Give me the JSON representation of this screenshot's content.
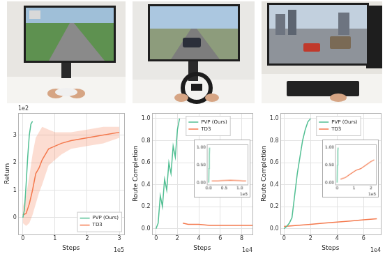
{
  "chart_data": [
    {
      "type": "line",
      "x_label": "Steps",
      "y_label": "Return",
      "x_scale_text": "1e5",
      "y_scale_text": "1e2",
      "xlim": [
        -0.15,
        3.15
      ],
      "ylim": [
        -0.6,
        3.8
      ],
      "xticks": [
        0,
        1,
        2,
        3
      ],
      "yticks": [
        0,
        1,
        2,
        3
      ],
      "grid": true,
      "legend": "lower right",
      "series": [
        {
          "name": "PVP (Ours)",
          "color": "#52bf93",
          "x": [
            0,
            0.05,
            0.1,
            0.15,
            0.2,
            0.25,
            0.3
          ],
          "values": [
            0,
            0.3,
            1.2,
            2.2,
            3.0,
            3.4,
            3.5
          ]
        },
        {
          "name": "TD3",
          "color": "#f4794d",
          "x": [
            0,
            0.1,
            0.2,
            0.3,
            0.4,
            0.5,
            0.6,
            0.8,
            1.0,
            1.2,
            1.5,
            2.0,
            2.5,
            3.0
          ],
          "values": [
            0.1,
            0.15,
            0.5,
            1.0,
            1.6,
            1.8,
            2.1,
            2.5,
            2.6,
            2.7,
            2.8,
            2.9,
            3.0,
            3.1
          ],
          "lower": [
            -0.2,
            -0.3,
            -0.2,
            0.1,
            0.5,
            0.9,
            1.2,
            1.9,
            2.1,
            2.3,
            2.5,
            2.6,
            2.7,
            2.9
          ],
          "upper": [
            0.4,
            0.8,
            1.5,
            2.3,
            2.9,
            3.1,
            3.3,
            3.2,
            3.1,
            3.1,
            3.1,
            3.2,
            3.3,
            3.3
          ]
        }
      ]
    },
    {
      "type": "line",
      "x_label": "Steps",
      "y_label": "Route Completion",
      "x_scale_text": "1e4",
      "xlim": [
        -0.4,
        9.0
      ],
      "ylim": [
        -0.05,
        1.05
      ],
      "xticks": [
        0,
        2,
        4,
        6,
        8
      ],
      "yticks": [
        {
          "value": 0,
          "label": "0.0"
        },
        0.2,
        0.4,
        0.6,
        0.8,
        {
          "value": 1,
          "label": "1.0"
        }
      ],
      "grid": true,
      "legend": "upper left",
      "series": [
        {
          "name": "PVP (Ours)",
          "color": "#52bf93",
          "x": [
            0,
            0.2,
            0.4,
            0.6,
            0.8,
            1.0,
            1.2,
            1.4,
            1.6,
            1.8,
            2.0,
            2.2
          ],
          "values": [
            0,
            0.05,
            0.3,
            0.2,
            0.45,
            0.35,
            0.6,
            0.5,
            0.75,
            0.65,
            0.9,
            1.0
          ]
        },
        {
          "name": "TD3",
          "color": "#f4794d",
          "x": [
            2.5,
            3,
            4,
            5,
            6,
            7,
            8,
            9
          ],
          "values": [
            0.05,
            0.04,
            0.04,
            0.03,
            0.03,
            0.03,
            0.03,
            0.03
          ]
        }
      ],
      "inset": {
        "type": "line",
        "x_scale_text": "1e5",
        "xlim": [
          -0.05,
          1.25
        ],
        "ylim": [
          -0.05,
          1.1
        ],
        "xticks": [
          {
            "value": 0,
            "label": "0.0"
          },
          0.5,
          {
            "value": 1,
            "label": "1.0"
          }
        ],
        "yticks": [
          {
            "value": 0,
            "label": "0.00"
          },
          {
            "value": 0.5,
            "label": "0.50"
          },
          {
            "value": 1,
            "label": "1.00"
          }
        ],
        "grid": false,
        "series": [
          {
            "color": "#52bf93",
            "x": [
              0,
              0.01,
              0.02,
              0.03
            ],
            "values": [
              0,
              0.4,
              0.8,
              1.0
            ]
          },
          {
            "color": "#f4794d",
            "x": [
              0.1,
              0.3,
              0.5,
              0.7,
              0.9,
              1.1,
              1.2
            ],
            "values": [
              0.05,
              0.05,
              0.06,
              0.07,
              0.06,
              0.05,
              0.05
            ]
          }
        ]
      }
    },
    {
      "type": "line",
      "x_label": "Steps",
      "y_label": "Route Completion",
      "x_scale_text": "1e4",
      "xlim": [
        -0.3,
        7.3
      ],
      "ylim": [
        -0.05,
        1.05
      ],
      "xticks": [
        0,
        2,
        4,
        6
      ],
      "yticks": [
        {
          "value": 0,
          "label": "0.0"
        },
        0.2,
        0.4,
        0.6,
        0.8,
        {
          "value": 1,
          "label": "1.0"
        }
      ],
      "grid": true,
      "legend": "upper left",
      "series": [
        {
          "name": "PVP (Ours)",
          "color": "#52bf93",
          "x": [
            0,
            0.2,
            0.4,
            0.6,
            0.8,
            1.0,
            1.2,
            1.4,
            1.6,
            1.8,
            2.0
          ],
          "values": [
            0,
            0.02,
            0.05,
            0.1,
            0.3,
            0.5,
            0.65,
            0.8,
            0.9,
            0.97,
            1.0
          ]
        },
        {
          "name": "TD3",
          "color": "#f4794d",
          "x": [
            0,
            1,
            2,
            3,
            4,
            5,
            6,
            7
          ],
          "values": [
            0.02,
            0.03,
            0.04,
            0.05,
            0.06,
            0.07,
            0.08,
            0.09
          ]
        }
      ],
      "inset": {
        "type": "line",
        "x_scale_text": "1e5",
        "xlim": [
          -0.1,
          2.3
        ],
        "ylim": [
          -0.05,
          1.1
        ],
        "xticks": [
          0,
          1,
          2
        ],
        "yticks": [
          {
            "value": 0,
            "label": "0.00"
          },
          {
            "value": 0.5,
            "label": "0.50"
          },
          {
            "value": 1,
            "label": "1.00"
          }
        ],
        "grid": false,
        "series": [
          {
            "color": "#52bf93",
            "x": [
              0,
              0.02,
              0.04,
              0.06
            ],
            "values": [
              0,
              0.5,
              0.9,
              1.0
            ]
          },
          {
            "color": "#f4794d",
            "x": [
              0.2,
              0.5,
              0.8,
              1.1,
              1.4,
              1.7,
              2.0,
              2.2
            ],
            "values": [
              0.1,
              0.15,
              0.25,
              0.35,
              0.4,
              0.5,
              0.6,
              0.65
            ]
          }
        ]
      }
    }
  ]
}
